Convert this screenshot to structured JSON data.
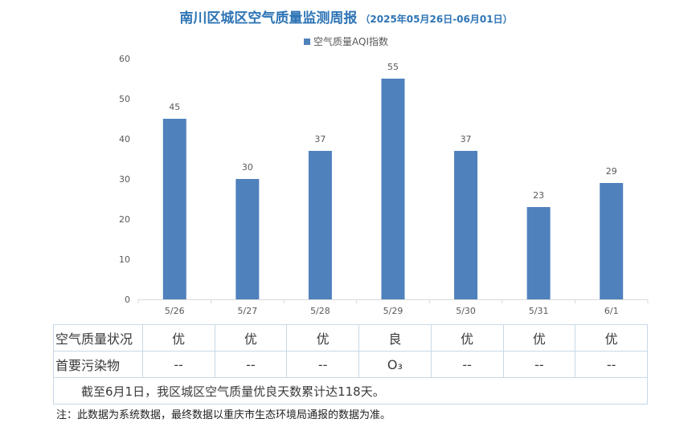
{
  "title": "南川区城区空气质量监测周报",
  "subtitle": "（2025年05月26日-06月01日）",
  "colors": {
    "bar": "#4f81bd",
    "title": "#2e74b5",
    "grid": "#d9d9d9"
  },
  "chart_data": {
    "type": "bar",
    "categories": [
      "5/26",
      "5/27",
      "5/28",
      "5/29",
      "5/30",
      "5/31",
      "6/1"
    ],
    "series": [
      {
        "name": "空气质量AQI指数",
        "values": [
          45,
          30,
          37,
          55,
          37,
          23,
          29
        ]
      }
    ],
    "ylim": [
      0,
      60
    ],
    "yticks": [
      0,
      10,
      20,
      30,
      40,
      50,
      60
    ],
    "legend": "top-center",
    "grid": false
  },
  "table": {
    "quality_label": "空气质量状况",
    "quality": [
      "优",
      "优",
      "优",
      "良",
      "优",
      "优",
      "优"
    ],
    "pollutant_label": "首要污染物",
    "pollutants": [
      "--",
      "--",
      "--",
      "O₃",
      "--",
      "--",
      "--"
    ],
    "summary": "截至6月1日，我区城区空气质量优良天数累计达118天。"
  },
  "footnote": "注：此数据为系统数据，最终数据以重庆市生态环境局通报的数据为准。"
}
